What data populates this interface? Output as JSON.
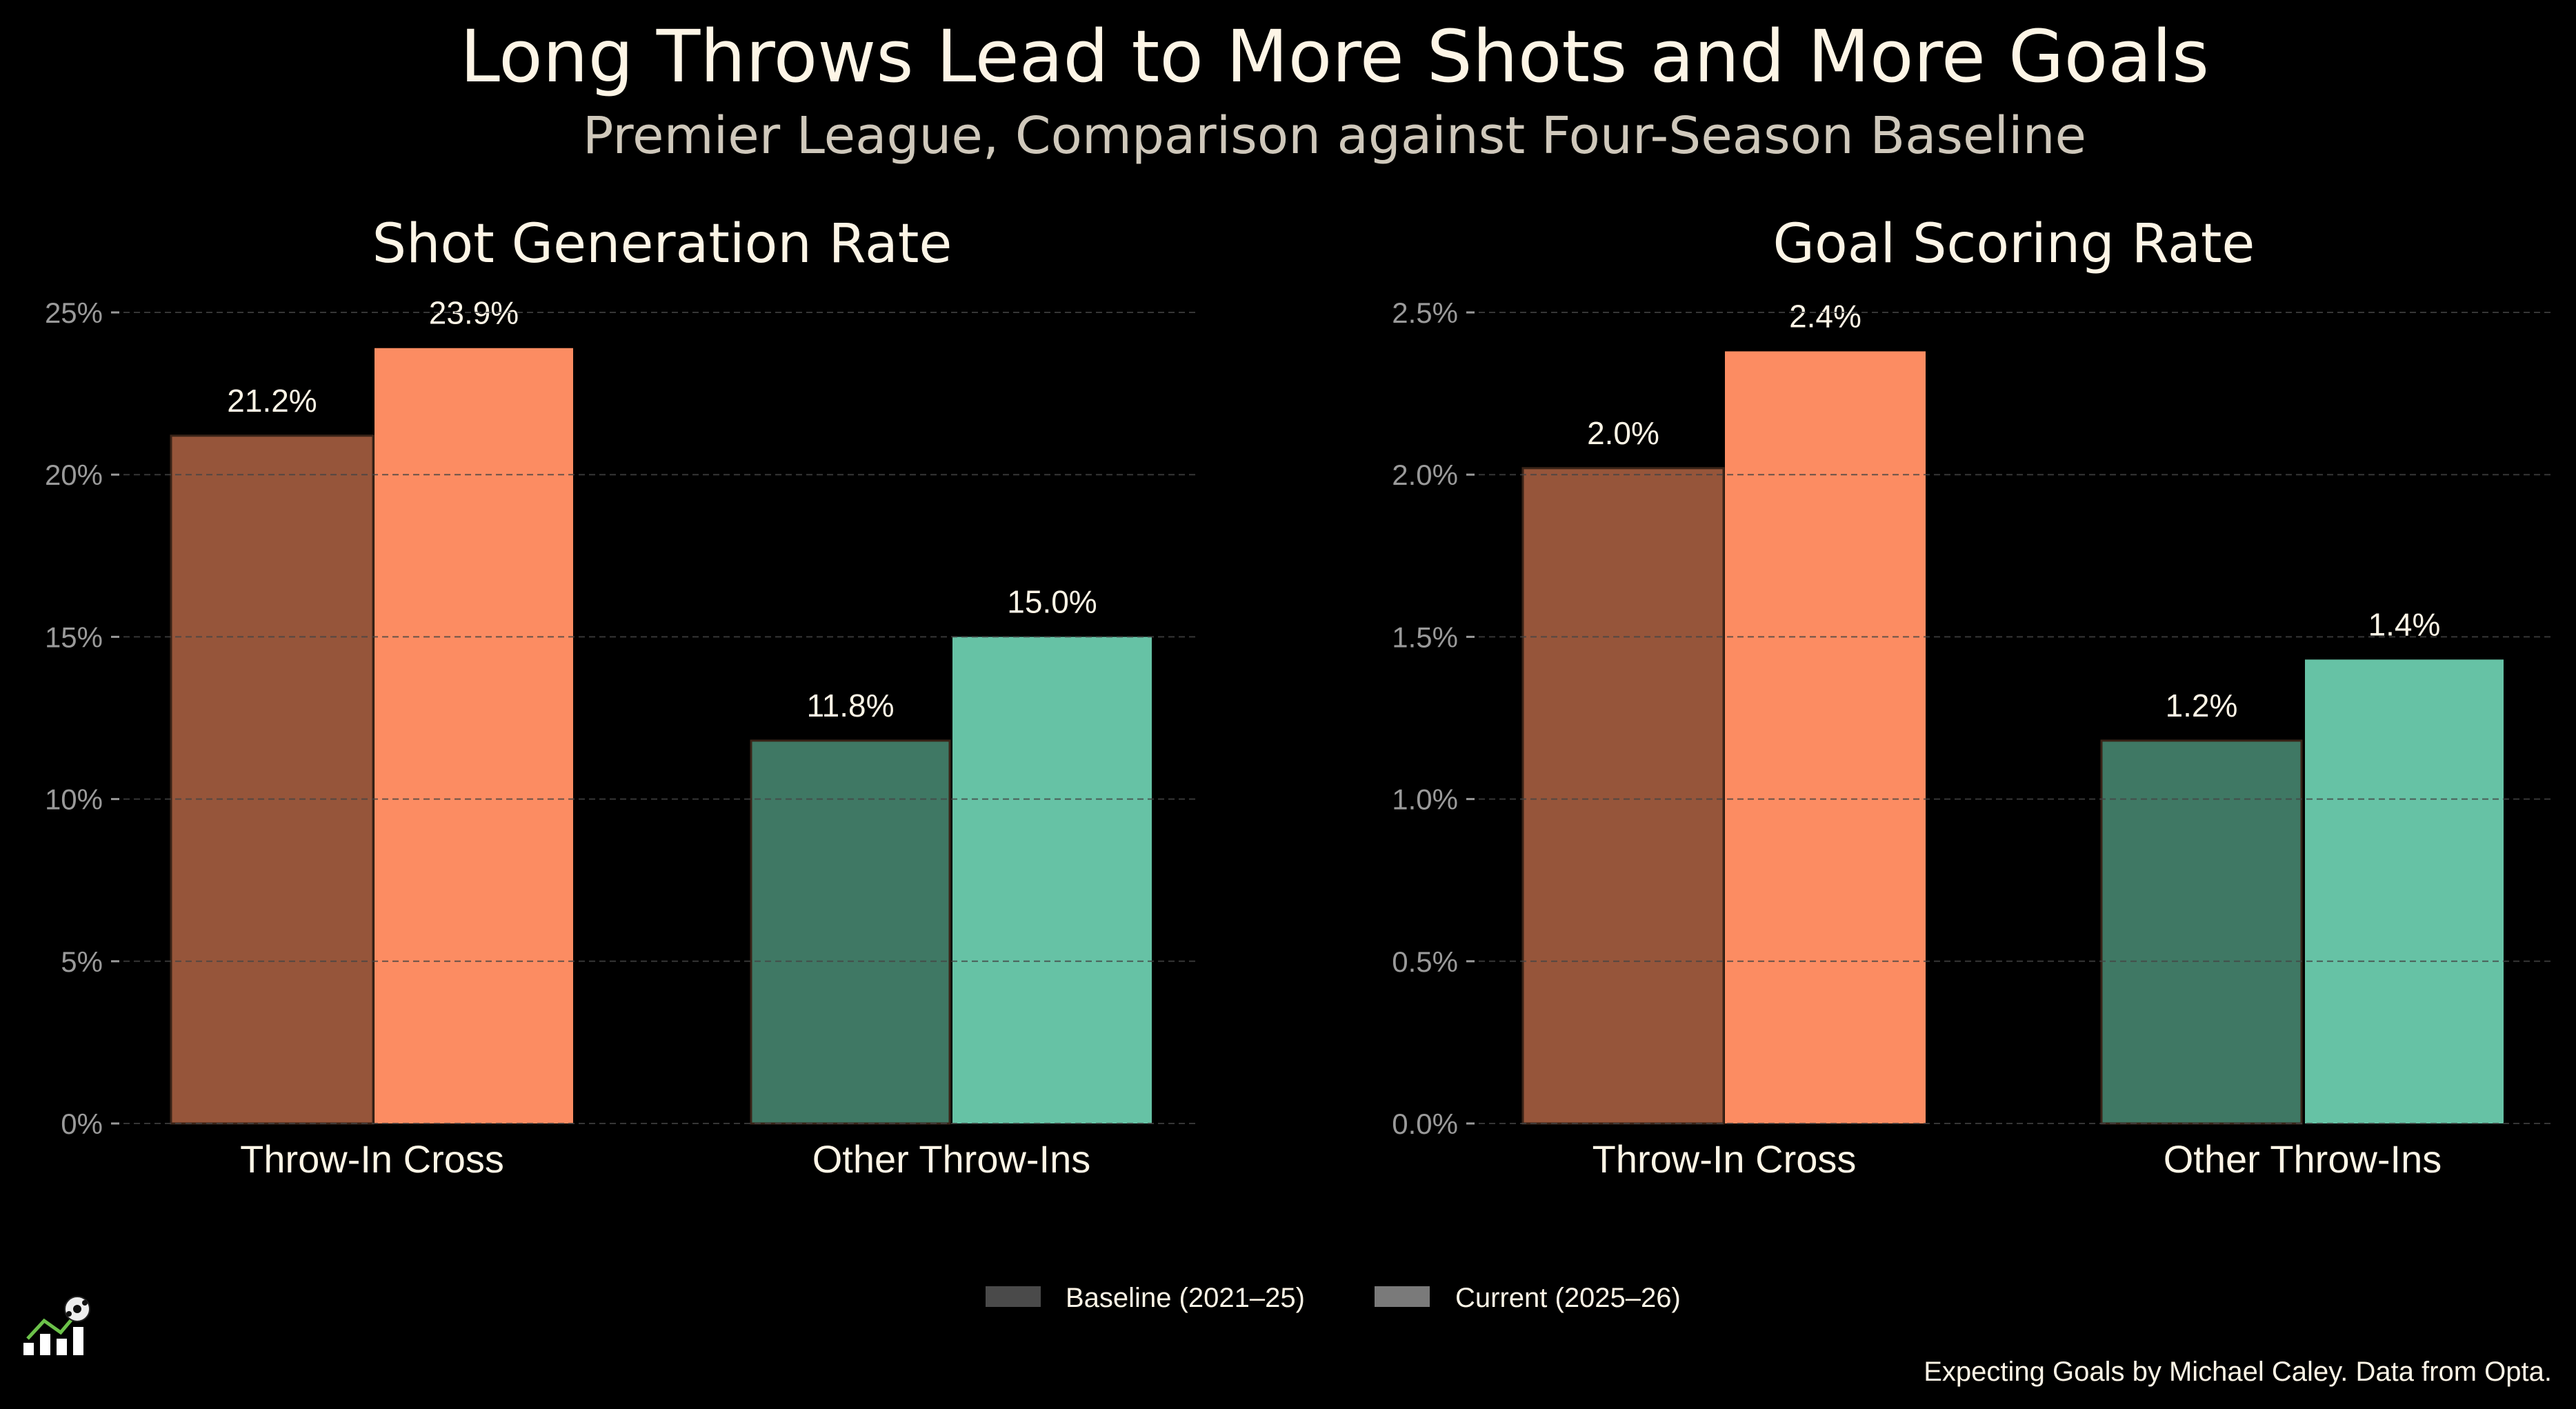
{
  "title": "Long Throws Lead to More Shots and More Goals",
  "subtitle": "Premier League, Comparison against Four-Season Baseline",
  "colors": {
    "throw_in_cross": {
      "baseline": "#96553a",
      "current": "#fc8c62"
    },
    "other_throw_ins": {
      "baseline": "#3f7864",
      "current": "#66c2a5"
    },
    "legend_baseline": "#4a4a4a",
    "legend_current": "#7a7a7a"
  },
  "legend": {
    "baseline": "Baseline (2021–25)",
    "current": "Current (2025–26)",
    "placement": "bottom-center"
  },
  "footer": "Expecting Goals by Michael Caley. Data from Opta.",
  "logo_icon": "chart-with-soccer-ball-logo",
  "chart_data": [
    {
      "type": "bar",
      "title": "Shot Generation Rate",
      "categories": [
        "Throw-In Cross",
        "Other Throw-Ins"
      ],
      "series": [
        {
          "name": "Baseline (2021–25)",
          "values": [
            21.2,
            11.8
          ],
          "labels": [
            "21.2%",
            "11.8%"
          ]
        },
        {
          "name": "Current (2025–26)",
          "values": [
            23.9,
            15.0
          ],
          "labels": [
            "23.9%",
            "15.0%"
          ]
        }
      ],
      "ylim": [
        0,
        25
      ],
      "yticks": [
        0,
        5,
        10,
        15,
        20,
        25
      ],
      "ytick_labels": [
        "0%",
        "5%",
        "10%",
        "15%",
        "20%",
        "25%"
      ],
      "grid": true
    },
    {
      "type": "bar",
      "title": "Goal Scoring Rate",
      "categories": [
        "Throw-In Cross",
        "Other Throw-Ins"
      ],
      "series": [
        {
          "name": "Baseline (2021–25)",
          "values": [
            2.02,
            1.18
          ],
          "labels": [
            "2.0%",
            "1.2%"
          ]
        },
        {
          "name": "Current (2025–26)",
          "values": [
            2.38,
            1.43
          ],
          "labels": [
            "2.4%",
            "1.4%"
          ]
        }
      ],
      "ylim": [
        0,
        2.5
      ],
      "yticks": [
        0,
        0.5,
        1.0,
        1.5,
        2.0,
        2.5
      ],
      "ytick_labels": [
        "0.0%",
        "0.5%",
        "1.0%",
        "1.5%",
        "2.0%",
        "2.5%"
      ],
      "grid": true
    }
  ]
}
